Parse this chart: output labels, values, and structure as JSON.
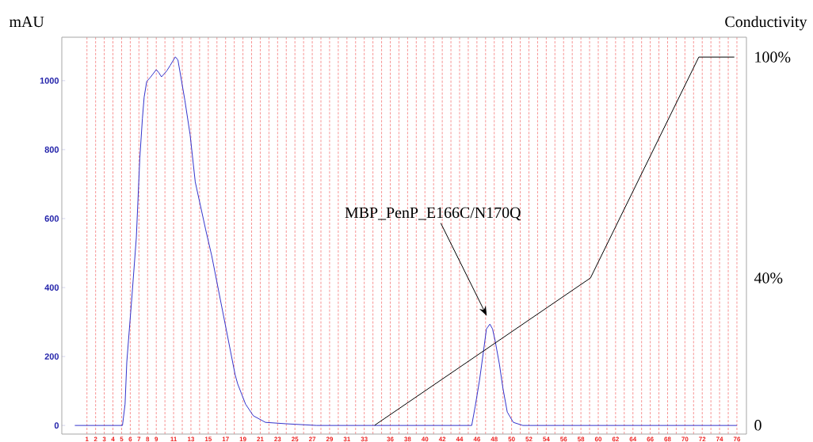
{
  "chart_data": {
    "type": "line",
    "ylabel": "mAU",
    "y2label": "Conductivity",
    "xlim": [
      -1.9,
      77.1
    ],
    "ylim": [
      -25,
      1126
    ],
    "yticks": [
      0,
      200,
      400,
      600,
      800,
      1000
    ],
    "y2lim": [
      -2.4,
      105.4
    ],
    "y2ticks": [
      0,
      {
        "value": 40,
        "label": "40%"
      },
      {
        "value": 100,
        "label": "100%"
      }
    ],
    "xticks": [
      1,
      2,
      3,
      4,
      5,
      6,
      7,
      8,
      9,
      {
        "value": 10,
        "label": null
      },
      11,
      {
        "value": 12,
        "label": null
      },
      13,
      {
        "value": 14,
        "label": null
      },
      15,
      {
        "value": 16,
        "label": null
      },
      17,
      {
        "value": 18,
        "label": null
      },
      19,
      {
        "value": 20,
        "label": null
      },
      21,
      {
        "value": 22,
        "label": null
      },
      23,
      {
        "value": 24,
        "label": null
      },
      25,
      {
        "value": 26,
        "label": null
      },
      27,
      {
        "value": 28,
        "label": null
      },
      29,
      {
        "value": 30,
        "label": null
      },
      31,
      {
        "value": 32,
        "label": null
      },
      33,
      {
        "value": 34,
        "label": null
      },
      {
        "value": 35,
        "label": null
      },
      36,
      {
        "value": 37,
        "label": null
      },
      38,
      {
        "value": 39,
        "label": null
      },
      40,
      {
        "value": 41,
        "label": null
      },
      42,
      {
        "value": 43,
        "label": null
      },
      44,
      {
        "value": 45,
        "label": null
      },
      46,
      {
        "value": 47,
        "label": null
      },
      48,
      {
        "value": 49,
        "label": null
      },
      50,
      {
        "value": 51,
        "label": null
      },
      52,
      {
        "value": 53,
        "label": null
      },
      54,
      {
        "value": 55,
        "label": null
      },
      56,
      {
        "value": 57,
        "label": null
      },
      58,
      {
        "value": 59,
        "label": null
      },
      60,
      {
        "value": 61,
        "label": null
      },
      62,
      {
        "value": 63,
        "label": null
      },
      64,
      {
        "value": 65,
        "label": null
      },
      66,
      {
        "value": 67,
        "label": null
      },
      68,
      {
        "value": 69,
        "label": null
      },
      70,
      {
        "value": 71,
        "label": null
      },
      72,
      {
        "value": 73,
        "label": null
      },
      74,
      {
        "value": 75,
        "label": null
      },
      76
    ],
    "grid": "x",
    "annotations": [
      "MBP_PenP_E166C/N170Q"
    ],
    "series": [
      {
        "color": "#3333cc",
        "x": [
          -0.4,
          5.1,
          5.4,
          5.6,
          6.2,
          6.7,
          7.1,
          7.4,
          7.6,
          7.9,
          8.3,
          9.0,
          9.3,
          9.6,
          10.2,
          10.6,
          11.2,
          11.5,
          12.3,
          12.9,
          13.5,
          14.7,
          15.4,
          16.3,
          17.2,
          18.1,
          18.4,
          19.3,
          20.2,
          21.6,
          23.9,
          27.5,
          45.4,
          45.8,
          46.3,
          46.8,
          47.1,
          47.5,
          47.8,
          48.1,
          48.6,
          49.0,
          49.5,
          50.2,
          51.3,
          76.0
        ],
        "values": [
          0,
          0,
          62,
          184,
          377,
          545,
          775,
          890,
          952,
          998,
          1009,
          1032,
          1023,
          1011,
          1028,
          1044,
          1069,
          1060,
          943,
          844,
          706,
          568,
          492,
          377,
          262,
          147,
          120,
          62,
          28,
          9,
          5,
          0,
          0,
          55,
          131,
          223,
          280,
          294,
          280,
          246,
          177,
          108,
          39,
          9,
          0,
          0
        ]
      },
      {
        "color": "#000000",
        "axis": "y2",
        "x": [
          34.2,
          59.1,
          71.6,
          75.7
        ],
        "values": [
          0,
          40,
          100,
          100
        ]
      }
    ]
  }
}
